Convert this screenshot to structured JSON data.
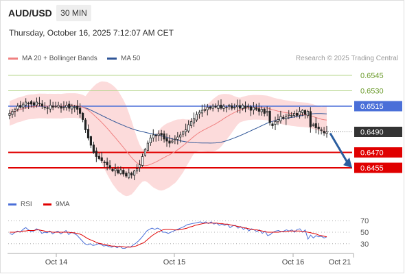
{
  "header": {
    "symbol": "AUD/USD",
    "timeframe": "30 MIN",
    "timestamp": "Thursday, October 16, 2025 7:12:07 AM CET",
    "credit": "Research © 2025 Trading Central"
  },
  "legend": {
    "ma20_label": "MA 20 + Bollinger Bands",
    "ma50_label": "MA 50",
    "rsi_label": "RSI",
    "rsi_ma_label": "9MA"
  },
  "colors": {
    "ma20": "#f08080",
    "ma50": "#2f5597",
    "band_fill": "#fbd5d5",
    "candle": "#222222",
    "resistance": "#b5d58a",
    "pivot": "#4a6fd8",
    "support": "#e00000",
    "current": "#333333",
    "arrow": "#2a5d9f",
    "rsi": "#4a6fd8",
    "rsi_ma": "#e00000"
  },
  "chart_data": [
    {
      "type": "candlestick",
      "title": "AUD/USD 30 MIN",
      "x_ticks": [
        "Oct 14",
        "Oct 15",
        "Oct 16",
        "Oct 21"
      ],
      "ylim": [
        0.6425,
        0.6555
      ],
      "current_price": "0.6490",
      "levels": [
        {
          "value": 0.6545,
          "label": "0.6545",
          "kind": "resistance"
        },
        {
          "value": 0.653,
          "label": "0.6530",
          "kind": "resistance"
        },
        {
          "value": 0.6515,
          "label": "0.6515",
          "kind": "pivot"
        },
        {
          "value": 0.647,
          "label": "0.6470",
          "kind": "support"
        },
        {
          "value": 0.6455,
          "label": "0.6455",
          "kind": "support"
        }
      ],
      "projection": {
        "from": 0.649,
        "to": 0.6455,
        "direction": "down"
      },
      "close_series": [
        0.6508,
        0.651,
        0.6512,
        0.6515,
        0.6514,
        0.6517,
        0.6519,
        0.6518,
        0.6517,
        0.6516,
        0.6519,
        0.6518,
        0.6515,
        0.6514,
        0.6513,
        0.6516,
        0.6514,
        0.6515,
        0.6516,
        0.6513,
        0.6514,
        0.6516,
        0.6513,
        0.6515,
        0.6514,
        0.6512,
        0.6508,
        0.6502,
        0.6492,
        0.6484,
        0.6477,
        0.647,
        0.6466,
        0.6464,
        0.6462,
        0.646,
        0.6458,
        0.6455,
        0.6452,
        0.6454,
        0.645,
        0.6453,
        0.6449,
        0.6447,
        0.645,
        0.6448,
        0.6452,
        0.6454,
        0.6458,
        0.6466,
        0.6473,
        0.6479,
        0.6484,
        0.6487,
        0.6486,
        0.6488,
        0.6487,
        0.6483,
        0.6481,
        0.6479,
        0.6481,
        0.6483,
        0.6485,
        0.6487,
        0.649,
        0.6492,
        0.6497,
        0.65,
        0.6503,
        0.6507,
        0.6509,
        0.6511,
        0.6512,
        0.6514,
        0.6513,
        0.6515,
        0.6514,
        0.6516,
        0.6513,
        0.6515,
        0.6514,
        0.6516,
        0.6513,
        0.6514,
        0.6516,
        0.6513,
        0.6516,
        0.6513,
        0.6515,
        0.6511,
        0.6514,
        0.6512,
        0.651,
        0.6512,
        0.6508,
        0.651,
        0.6499,
        0.6496,
        0.65,
        0.6502,
        0.6505,
        0.6503,
        0.6505,
        0.6507,
        0.6506,
        0.6508,
        0.6506,
        0.651,
        0.6511,
        0.6507,
        0.651,
        0.6495,
        0.6497,
        0.6494,
        0.6493,
        0.6492,
        0.6489,
        0.649
      ]
    },
    {
      "type": "line",
      "title": "RSI",
      "y_ticks": [
        70,
        50,
        30
      ],
      "series": [
        {
          "name": "RSI",
          "values": [
            48,
            46,
            50,
            52,
            50,
            55,
            58,
            54,
            51,
            52,
            56,
            54,
            48,
            50,
            49,
            52,
            47,
            50,
            52,
            47,
            50,
            53,
            46,
            50,
            48,
            45,
            40,
            35,
            30,
            28,
            30,
            27,
            28,
            30,
            29,
            26,
            27,
            25,
            24,
            26,
            23,
            26,
            22,
            22,
            25,
            24,
            28,
            31,
            35,
            40,
            46,
            52,
            55,
            57,
            55,
            57,
            55,
            50,
            50,
            48,
            50,
            52,
            54,
            56,
            58,
            60,
            63,
            64,
            65,
            66,
            67,
            68,
            66,
            68,
            65,
            68,
            64,
            66,
            62,
            64,
            62,
            64,
            58,
            61,
            62,
            57,
            60,
            55,
            58,
            52,
            56,
            54,
            51,
            54,
            48,
            52,
            44,
            46,
            50,
            52,
            53,
            51,
            52,
            54,
            52,
            54,
            50,
            55,
            56,
            50,
            54,
            38,
            45,
            40,
            44,
            42,
            43,
            40,
            42
          ]
        },
        {
          "name": "9MA",
          "values": [
            50,
            50,
            50,
            51,
            51,
            52,
            52,
            53,
            53,
            53,
            54,
            54,
            53,
            52,
            51,
            51,
            50,
            50,
            50,
            50,
            50,
            50,
            50,
            49,
            49,
            48,
            47,
            45,
            42,
            39,
            37,
            35,
            33,
            31,
            30,
            29,
            28,
            27,
            26,
            26,
            25,
            25,
            25,
            24,
            24,
            24,
            25,
            26,
            28,
            30,
            32,
            36,
            40,
            44,
            47,
            50,
            52,
            54,
            55,
            55,
            55,
            54,
            54,
            54,
            55,
            56,
            57,
            59,
            60,
            62,
            63,
            64,
            65,
            66,
            66,
            66,
            66,
            66,
            65,
            65,
            64,
            64,
            63,
            62,
            61,
            60,
            59,
            58,
            57,
            56,
            55,
            54,
            54,
            53,
            52,
            51,
            50,
            50,
            50,
            50,
            50,
            51,
            51,
            51,
            52,
            52,
            52,
            52,
            52,
            51,
            51,
            50,
            49,
            48,
            47,
            45,
            44,
            43,
            42
          ]
        }
      ]
    }
  ]
}
